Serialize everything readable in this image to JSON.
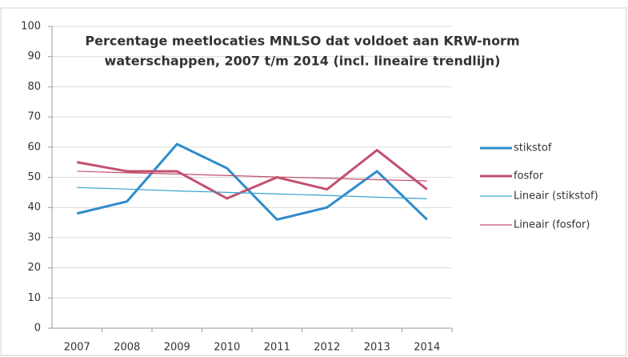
{
  "chart_data": {
    "type": "line",
    "title": [
      "Percentage meetlocaties MNLSO dat voldoet aan KRW-norm",
      "waterschappen, 2007 t/m 2014 (incl. lineaire trendlijn)"
    ],
    "categories": [
      "2007",
      "2008",
      "2009",
      "2010",
      "2011",
      "2012",
      "2013",
      "2014"
    ],
    "series": [
      {
        "name": "stikstof",
        "color": "#2f8ccb",
        "width": 3,
        "values": [
          38,
          42,
          61,
          53,
          36,
          40,
          52,
          36
        ]
      },
      {
        "name": "fosfor",
        "color": "#c2506f",
        "width": 3,
        "values": [
          55,
          52,
          52,
          43,
          50,
          46,
          59,
          46
        ]
      },
      {
        "name": "Lineair (stikstof)",
        "color": "#3aa3cc",
        "width": 1.2,
        "values": [
          46.6,
          46.1,
          45.5,
          45.0,
          44.5,
          44.0,
          43.4,
          42.9
        ]
      },
      {
        "name": "Lineair (fosfor)",
        "color": "#c4506f",
        "width": 1.2,
        "values": [
          52.0,
          51.5,
          51.1,
          50.6,
          50.1,
          49.7,
          49.2,
          48.8
        ]
      }
    ],
    "ylim": [
      0,
      100
    ],
    "yticks": [
      0,
      10,
      20,
      30,
      40,
      50,
      60,
      70,
      80,
      90,
      100
    ],
    "grid": true,
    "legend": "right"
  }
}
